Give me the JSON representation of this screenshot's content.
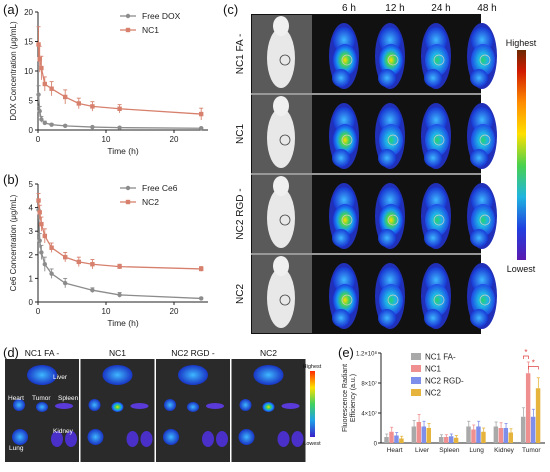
{
  "panels": {
    "a": "(a)",
    "b": "(b)",
    "c": "(c)",
    "d": "(d)",
    "e": "(e)"
  },
  "chart_data": [
    {
      "id": "a",
      "type": "line",
      "xlabel": "Time (h)",
      "ylabel": "DOX Concentration (μg/mL)",
      "xlim": [
        0,
        25
      ],
      "ylim": [
        0,
        20
      ],
      "xticks": [
        "0",
        "10",
        "20"
      ],
      "yticks": [
        "0",
        "5",
        "10",
        "15",
        "20"
      ],
      "legend": "top-right",
      "series": [
        {
          "name": "Free DOX",
          "color": "#8c8c8c",
          "marker": "circle",
          "x": [
            0.08,
            0.25,
            0.5,
            1,
            2,
            4,
            8,
            12,
            24
          ],
          "y": [
            6.0,
            3.2,
            1.8,
            1.2,
            0.9,
            0.7,
            0.5,
            0.4,
            0.3
          ],
          "err": [
            1.5,
            0.8,
            0.5,
            0.3,
            0.2,
            0.2,
            0.1,
            0.1,
            0.1
          ]
        },
        {
          "name": "NC1",
          "color": "#d7806d",
          "marker": "square",
          "x": [
            0.08,
            0.25,
            0.5,
            1,
            2,
            4,
            6,
            8,
            12,
            24
          ],
          "y": [
            14.5,
            12.0,
            10.5,
            7.8,
            7.0,
            5.6,
            4.5,
            4.0,
            3.6,
            2.7
          ],
          "err": [
            3.0,
            2.2,
            2.0,
            1.2,
            1.2,
            1.2,
            0.9,
            0.8,
            0.7,
            1.0
          ]
        }
      ]
    },
    {
      "id": "b",
      "type": "line",
      "xlabel": "Time (h)",
      "ylabel": "Ce6 Concentration (μg/mL)",
      "xlim": [
        0,
        25
      ],
      "ylim": [
        0,
        5
      ],
      "xticks": [
        "0",
        "10",
        "20"
      ],
      "yticks": [
        "0",
        "1",
        "2",
        "3",
        "4",
        "5"
      ],
      "legend": "top-right",
      "series": [
        {
          "name": "Free Ce6",
          "color": "#8c8c8c",
          "marker": "circle",
          "x": [
            0.08,
            0.25,
            0.5,
            1,
            2,
            4,
            8,
            12,
            24
          ],
          "y": [
            3.9,
            2.6,
            2.1,
            1.6,
            1.2,
            0.8,
            0.5,
            0.3,
            0.15
          ],
          "err": [
            0.4,
            0.3,
            0.3,
            0.3,
            0.2,
            0.2,
            0.1,
            0.1,
            0.05
          ]
        },
        {
          "name": "NC2",
          "color": "#d7806d",
          "marker": "square",
          "x": [
            0.08,
            0.25,
            0.5,
            1,
            2,
            4,
            6,
            8,
            12,
            24
          ],
          "y": [
            4.3,
            3.8,
            3.3,
            2.8,
            2.3,
            1.9,
            1.7,
            1.6,
            1.5,
            1.4
          ],
          "err": [
            0.3,
            0.3,
            0.3,
            0.3,
            0.2,
            0.2,
            0.2,
            0.2,
            0.1,
            0.1
          ]
        }
      ]
    },
    {
      "id": "e",
      "type": "bar",
      "ylabel": "Fluorescence Radiant Efficiency (a.u.)",
      "ylim": [
        0,
        120000000
      ],
      "yticks": [
        "0",
        "4×10⁷",
        "8×10⁷",
        "1.2×10⁸"
      ],
      "categories": [
        "Heart",
        "Liver",
        "Spleen",
        "Lung",
        "Kidney",
        "Tumor"
      ],
      "legend": "top-right",
      "series": [
        {
          "name": "NC1 FA-",
          "color": "#a9a9a9",
          "values": [
            8000000,
            22000000,
            8000000,
            22000000,
            22000000,
            35000000
          ],
          "err": [
            4000000,
            8000000,
            3000000,
            7000000,
            6000000,
            12000000
          ]
        },
        {
          "name": "NC1",
          "color": "#ef8f8f",
          "values": [
            15000000,
            28000000,
            8000000,
            18000000,
            20000000,
            93000000
          ],
          "err": [
            6000000,
            10000000,
            3000000,
            6000000,
            7000000,
            15000000
          ]
        },
        {
          "name": "NC2 RGD-",
          "color": "#7d8fea",
          "values": [
            10000000,
            22000000,
            9000000,
            22000000,
            20000000,
            35000000
          ],
          "err": [
            4000000,
            7000000,
            3000000,
            7000000,
            6000000,
            10000000
          ]
        },
        {
          "name": "NC2",
          "color": "#e6b43c",
          "values": [
            6000000,
            20000000,
            7000000,
            15000000,
            14000000,
            73000000
          ],
          "err": [
            3000000,
            6000000,
            3000000,
            5000000,
            5000000,
            14000000
          ]
        }
      ],
      "significance": [
        "*",
        "*"
      ]
    }
  ],
  "imaging_c": {
    "time_labels": [
      "6 h",
      "12 h",
      "24 h",
      "48 h"
    ],
    "row_labels": [
      "NC1 FA -",
      "NC1",
      "NC2 RGD -",
      "NC2"
    ],
    "colorbar_top": "Highest",
    "colorbar_bottom": "Lowest"
  },
  "imaging_d": {
    "group_labels": [
      "NC1 FA -",
      "NC1",
      "NC2 RGD -",
      "NC2"
    ],
    "organ_labels": [
      "Liver",
      "Heart",
      "Tumor",
      "Spleen",
      "Lung",
      "Kidney"
    ],
    "colorbar_top": "Highest",
    "colorbar_bottom": "Lowest"
  }
}
